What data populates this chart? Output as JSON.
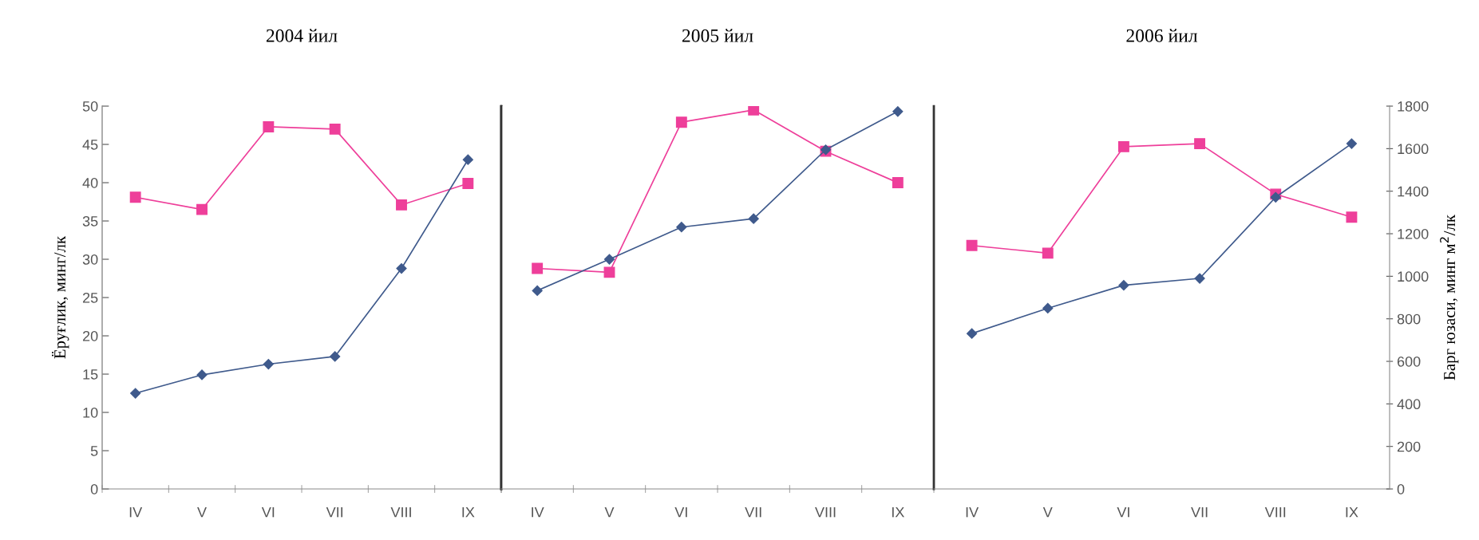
{
  "chart_data": [
    {
      "type": "line",
      "title": "2004 йил",
      "ylabel": "Ёруғлик, минг/лк",
      "categories": [
        "IV",
        "V",
        "VI",
        "VII",
        "VIII",
        "IX"
      ],
      "ylim": [
        0,
        50
      ],
      "yticks": [
        0,
        5,
        10,
        15,
        20,
        25,
        30,
        35,
        40,
        45,
        50
      ],
      "grid": false,
      "series": [
        {
          "color": "#ee3f9a",
          "marker": "square",
          "values": [
            38.1,
            36.5,
            47.3,
            47.0,
            37.1,
            39.9
          ]
        },
        {
          "color": "#3f5a8c",
          "marker": "diamond",
          "values": [
            12.5,
            14.9,
            16.3,
            17.3,
            28.8,
            43.0
          ]
        }
      ]
    },
    {
      "type": "line",
      "title": "2005 йил",
      "categories": [
        "IV",
        "V",
        "VI",
        "VII",
        "VIII",
        "IX"
      ],
      "ylim": [
        0,
        50
      ],
      "tick_labels": "x",
      "grid": false,
      "series": [
        {
          "color": "#ee3f9a",
          "marker": "square",
          "values": [
            28.8,
            28.3,
            47.9,
            49.5,
            44.1,
            40.0
          ]
        },
        {
          "color": "#3f5a8c",
          "marker": "diamond",
          "values": [
            25.9,
            30.0,
            34.2,
            35.3,
            44.3,
            49.3
          ]
        }
      ]
    },
    {
      "type": "line",
      "title": "2006 йил",
      "y2label": "Барг юзаси, минг м$^{2}$/лк",
      "categories": [
        "IV",
        "V",
        "VI",
        "VII",
        "VIII",
        "IX"
      ],
      "ylim": [
        0,
        50
      ],
      "y2lim": [
        0,
        1800
      ],
      "y2ticks": [
        0,
        200,
        400,
        600,
        800,
        1000,
        1200,
        1400,
        1600,
        1800
      ],
      "grid": false,
      "series": [
        {
          "color": "#ee3f9a",
          "marker": "square",
          "values": [
            31.8,
            30.8,
            44.7,
            45.1,
            38.5,
            35.5
          ]
        },
        {
          "color": "#3f5a8c",
          "marker": "diamond",
          "values": [
            20.3,
            23.6,
            26.6,
            27.5,
            38.1,
            45.1
          ]
        }
      ]
    }
  ]
}
